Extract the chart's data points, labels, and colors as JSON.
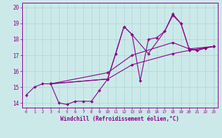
{
  "xlabel": "Windchill (Refroidissement éolien,°C)",
  "xlim": [
    -0.5,
    23.5
  ],
  "ylim": [
    13.7,
    20.3
  ],
  "xticks": [
    0,
    1,
    2,
    3,
    4,
    5,
    6,
    7,
    8,
    9,
    10,
    11,
    12,
    13,
    14,
    15,
    16,
    17,
    18,
    19,
    20,
    21,
    22,
    23
  ],
  "yticks": [
    14,
    15,
    16,
    17,
    18,
    19,
    20
  ],
  "bg_color": "#cce9e9",
  "line_color": "#880088",
  "grid_color": "#aad4d4",
  "lines": [
    {
      "x": [
        0,
        1,
        2,
        3,
        4,
        5,
        6,
        7,
        8,
        9,
        10,
        11,
        12,
        13,
        14,
        15,
        16,
        17,
        18,
        19,
        20,
        21,
        22,
        23
      ],
      "y": [
        14.5,
        15.0,
        15.2,
        15.2,
        14.0,
        13.9,
        14.1,
        14.1,
        14.1,
        14.8,
        15.5,
        17.1,
        18.8,
        18.3,
        15.4,
        18.0,
        18.1,
        18.5,
        19.5,
        19.0,
        17.4,
        17.3,
        17.45,
        17.55
      ]
    },
    {
      "x": [
        3,
        10,
        13,
        18,
        20,
        23
      ],
      "y": [
        15.2,
        15.5,
        16.4,
        17.1,
        17.3,
        17.55
      ]
    },
    {
      "x": [
        3,
        10,
        13,
        18,
        20,
        23
      ],
      "y": [
        15.2,
        15.9,
        17.0,
        17.8,
        17.4,
        17.55
      ]
    },
    {
      "x": [
        3,
        10,
        12,
        13,
        15,
        17,
        18,
        19,
        20,
        21,
        22,
        23
      ],
      "y": [
        15.2,
        15.5,
        18.8,
        18.3,
        17.1,
        18.5,
        19.6,
        19.0,
        17.4,
        17.3,
        17.45,
        17.55
      ]
    }
  ]
}
